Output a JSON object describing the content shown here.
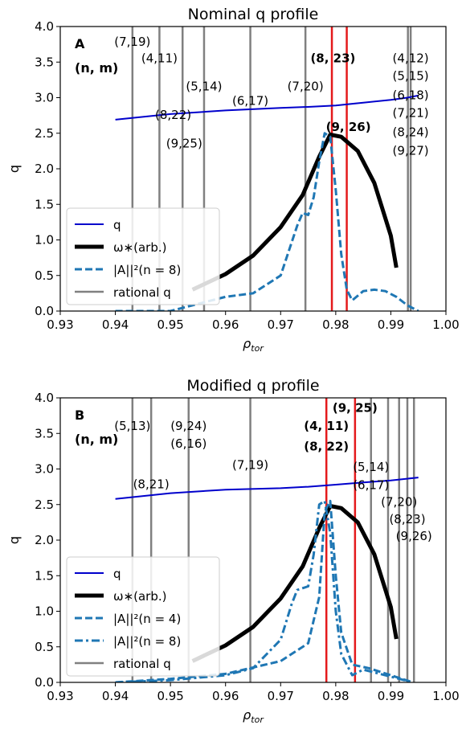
{
  "figure": {
    "background": "#ffffff"
  },
  "chart_data": [
    {
      "type": "line",
      "panel_label": "A",
      "title": "Nominal q profile",
      "xlabel": "ρ_tor",
      "ylabel": "q",
      "xlim": [
        0.93,
        1.0
      ],
      "ylim": [
        0.0,
        4.0
      ],
      "xticks": [
        "0.93",
        "0.94",
        "0.95",
        "0.96",
        "0.97",
        "0.98",
        "0.99",
        "1.00"
      ],
      "yticks": [
        "0.0",
        "0.5",
        "1.0",
        "1.5",
        "2.0",
        "2.5",
        "3.0",
        "3.5",
        "4.0"
      ],
      "grid": false,
      "legend_position": "lower-left",
      "nm_label": "(n, m)",
      "legend": [
        {
          "label": "q",
          "color": "#0000cc",
          "style": "solid"
        },
        {
          "label": "ω∗(arb.)",
          "color": "#000000",
          "style": "thick"
        },
        {
          "label": "|A||²(n = 8)",
          "color": "#1f77b4",
          "style": "dashed"
        },
        {
          "label": "rational q",
          "color": "#808080",
          "style": "solid"
        }
      ],
      "rational_q_x": [
        0.9431,
        0.948,
        0.9522,
        0.9561,
        0.9645,
        0.9745,
        0.9931,
        0.9936
      ],
      "resonant_x": [
        0.9793,
        0.982
      ],
      "colors": {
        "q": "#0000cc",
        "omega": "#000000",
        "A": "#1f77b4",
        "rational": "#808080",
        "resonant": "#e41a1c"
      },
      "series": [
        {
          "name": "q",
          "x": [
            0.94,
            0.95,
            0.96,
            0.97,
            0.975,
            0.98,
            0.985,
            0.99,
            0.993,
            0.995
          ],
          "y": [
            2.69,
            2.77,
            2.82,
            2.855,
            2.87,
            2.89,
            2.93,
            2.97,
            3.0,
            3.03
          ]
        },
        {
          "name": "ω∗(arb.)",
          "x": [
            0.954,
            0.96,
            0.965,
            0.97,
            0.974,
            0.977,
            0.979,
            0.981,
            0.984,
            0.987,
            0.99,
            0.991
          ],
          "y": [
            0.3,
            0.52,
            0.78,
            1.18,
            1.63,
            2.17,
            2.48,
            2.45,
            2.25,
            1.8,
            1.06,
            0.61
          ]
        },
        {
          "name": "|A||²(n = 8)",
          "x": [
            0.94,
            0.95,
            0.955,
            0.96,
            0.965,
            0.97,
            0.973,
            0.974,
            0.975,
            0.976,
            0.977,
            0.978,
            0.979,
            0.98,
            0.981,
            0.982,
            0.983,
            0.985,
            0.987,
            0.989,
            0.991,
            0.993,
            0.995
          ],
          "y": [
            0.0,
            0.0,
            0.1,
            0.2,
            0.25,
            0.5,
            1.2,
            1.38,
            1.35,
            1.6,
            2.1,
            2.5,
            2.45,
            1.7,
            0.8,
            0.3,
            0.15,
            0.28,
            0.3,
            0.28,
            0.2,
            0.08,
            0.0
          ]
        }
      ],
      "annotations": [
        {
          "text": "(7,19)",
          "x": 0.9431,
          "y": 3.73,
          "bold": false
        },
        {
          "text": "(4,11)",
          "x": 0.948,
          "y": 3.5,
          "bold": false
        },
        {
          "text": "(5,14)",
          "x": 0.9561,
          "y": 3.1,
          "bold": false
        },
        {
          "text": "(6,17)",
          "x": 0.9645,
          "y": 2.9,
          "bold": false
        },
        {
          "text": "(7,20)",
          "x": 0.9745,
          "y": 3.1,
          "bold": false
        },
        {
          "text": "(8,22)",
          "x": 0.9505,
          "y": 2.7,
          "bold": false
        },
        {
          "text": "(9,25)",
          "x": 0.9525,
          "y": 2.3,
          "bold": false
        },
        {
          "text": "(8, 23)",
          "x": 0.9795,
          "y": 3.5,
          "bold": true
        },
        {
          "text": "(9, 26)",
          "x": 0.9823,
          "y": 2.53,
          "bold": true
        },
        {
          "text": "(4,12)",
          "x": 0.9936,
          "y": 3.5,
          "bold": false
        },
        {
          "text": "(5,15)",
          "x": 0.9936,
          "y": 3.25,
          "bold": false
        },
        {
          "text": "(6,18)",
          "x": 0.9936,
          "y": 2.98,
          "bold": false
        },
        {
          "text": "(7,21)",
          "x": 0.9936,
          "y": 2.73,
          "bold": false
        },
        {
          "text": "(8,24)",
          "x": 0.9936,
          "y": 2.46,
          "bold": false
        },
        {
          "text": "(9,27)",
          "x": 0.9936,
          "y": 2.2,
          "bold": false
        }
      ]
    },
    {
      "type": "line",
      "panel_label": "B",
      "title": "Modified q profile",
      "xlabel": "ρ_tor",
      "ylabel": "q",
      "xlim": [
        0.93,
        1.0
      ],
      "ylim": [
        0.0,
        4.0
      ],
      "xticks": [
        "0.93",
        "0.94",
        "0.95",
        "0.96",
        "0.97",
        "0.98",
        "0.99",
        "1.00"
      ],
      "yticks": [
        "0.0",
        "0.5",
        "1.0",
        "1.5",
        "2.0",
        "2.5",
        "3.0",
        "3.5",
        "4.0"
      ],
      "grid": false,
      "legend_position": "lower-left",
      "nm_label": "(n, m)",
      "legend": [
        {
          "label": "q",
          "color": "#0000cc",
          "style": "solid"
        },
        {
          "label": "ω∗(arb.)",
          "color": "#000000",
          "style": "thick"
        },
        {
          "label": "|A||²(n = 4)",
          "color": "#1f77b4",
          "style": "dashed"
        },
        {
          "label": "|A||²(n = 8)",
          "color": "#1f77b4",
          "style": "dashdot"
        },
        {
          "label": "rational q",
          "color": "#808080",
          "style": "solid"
        }
      ],
      "rational_q_x": [
        0.9431,
        0.9465,
        0.9533,
        0.9645,
        0.9864,
        0.9895,
        0.9915,
        0.993,
        0.9942
      ],
      "resonant_x": [
        0.9783,
        0.9835
      ],
      "colors": {
        "q": "#0000cc",
        "omega": "#000000",
        "A": "#1f77b4",
        "rational": "#808080",
        "resonant": "#e41a1c"
      },
      "series": [
        {
          "name": "q",
          "x": [
            0.94,
            0.95,
            0.96,
            0.97,
            0.975,
            0.98,
            0.985,
            0.99,
            0.995
          ],
          "y": [
            2.58,
            2.66,
            2.71,
            2.73,
            2.75,
            2.78,
            2.81,
            2.84,
            2.88
          ]
        },
        {
          "name": "ω∗(arb.)",
          "x": [
            0.954,
            0.96,
            0.965,
            0.97,
            0.974,
            0.977,
            0.979,
            0.981,
            0.984,
            0.987,
            0.99,
            0.991
          ],
          "y": [
            0.3,
            0.52,
            0.78,
            1.18,
            1.63,
            2.17,
            2.48,
            2.45,
            2.25,
            1.8,
            1.06,
            0.61
          ]
        },
        {
          "name": "|A||²(n = 4)",
          "x": [
            0.94,
            0.95,
            0.96,
            0.97,
            0.975,
            0.977,
            0.978,
            0.979,
            0.98,
            0.981,
            0.983,
            0.986,
            0.99,
            0.994
          ],
          "y": [
            0.0,
            0.05,
            0.12,
            0.3,
            0.55,
            1.2,
            2.4,
            2.55,
            1.5,
            0.7,
            0.25,
            0.2,
            0.1,
            0.0
          ]
        },
        {
          "name": "|A||²(n = 8)",
          "x": [
            0.94,
            0.95,
            0.96,
            0.965,
            0.97,
            0.972,
            0.973,
            0.975,
            0.976,
            0.977,
            0.978,
            0.979,
            0.98,
            0.981,
            0.983,
            0.985,
            0.99,
            0.994
          ],
          "y": [
            0.0,
            0.03,
            0.1,
            0.2,
            0.6,
            1.1,
            1.3,
            1.35,
            1.8,
            2.5,
            2.55,
            2.1,
            1.0,
            0.4,
            0.1,
            0.18,
            0.08,
            0.0
          ]
        }
      ],
      "annotations": [
        {
          "text": "(5,13)",
          "x": 0.9431,
          "y": 3.55,
          "bold": false
        },
        {
          "text": "(9,24)",
          "x": 0.9533,
          "y": 3.55,
          "bold": false
        },
        {
          "text": "(6,16)",
          "x": 0.9533,
          "y": 3.3,
          "bold": false
        },
        {
          "text": "(8,21)",
          "x": 0.9465,
          "y": 2.73,
          "bold": false
        },
        {
          "text": "(7,19)",
          "x": 0.9645,
          "y": 3.0,
          "bold": false
        },
        {
          "text": "(9, 25)",
          "x": 0.9835,
          "y": 3.8,
          "bold": true
        },
        {
          "text": "(4, 11)",
          "x": 0.9783,
          "y": 3.55,
          "bold": true
        },
        {
          "text": "(8, 22)",
          "x": 0.9783,
          "y": 3.26,
          "bold": true
        },
        {
          "text": "(5,14)",
          "x": 0.9864,
          "y": 2.97,
          "bold": false
        },
        {
          "text": "(6,17)",
          "x": 0.9864,
          "y": 2.72,
          "bold": false
        },
        {
          "text": "(7,20)",
          "x": 0.9915,
          "y": 2.48,
          "bold": false
        },
        {
          "text": "(8,23)",
          "x": 0.993,
          "y": 2.24,
          "bold": false
        },
        {
          "text": "(9,26)",
          "x": 0.9942,
          "y": 2.0,
          "bold": false
        }
      ]
    }
  ]
}
